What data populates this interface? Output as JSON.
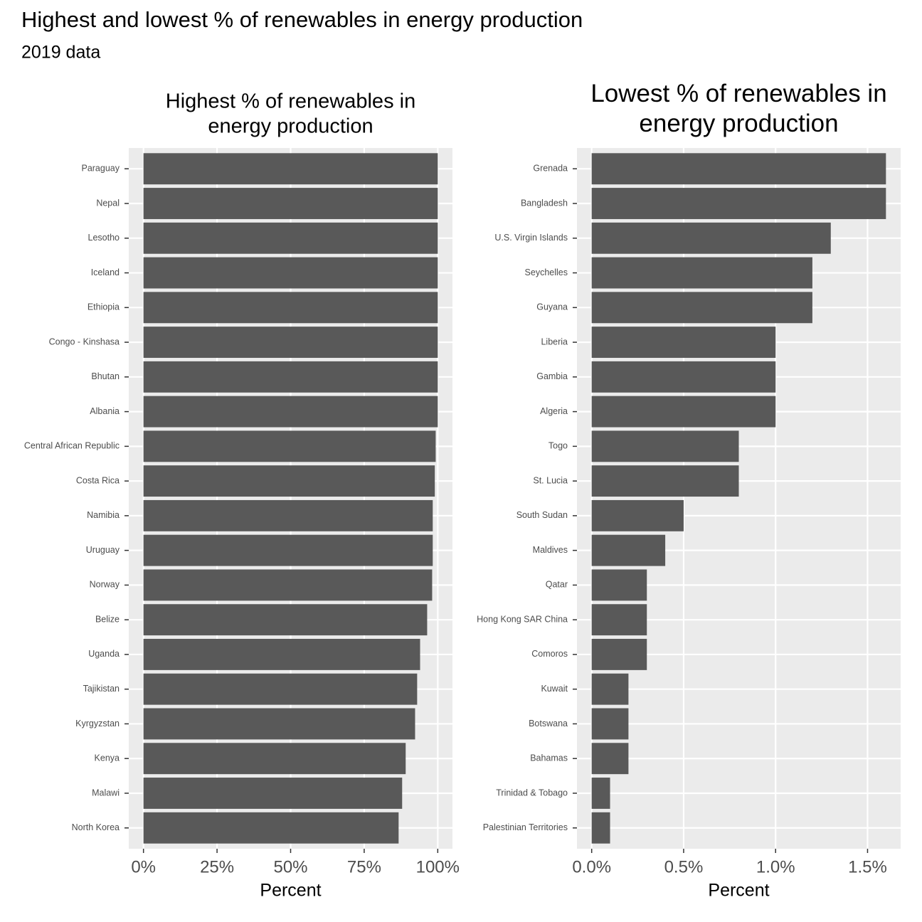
{
  "title": "Highest and lowest % of renewables in energy production",
  "subtitle": "2019 data",
  "chart_data": [
    {
      "type": "bar",
      "orientation": "horizontal",
      "title": "Highest % of renewables in\nenergy production",
      "x_label": "Percent",
      "categories": [
        "Paraguay",
        "Nepal",
        "Lesotho",
        "Iceland",
        "Ethiopia",
        "Congo - Kinshasa",
        "Bhutan",
        "Albania",
        "Central African Republic",
        "Costa Rica",
        "Namibia",
        "Uruguay",
        "Norway",
        "Belize",
        "Uganda",
        "Tajikistan",
        "Kyrgyzstan",
        "Kenya",
        "Malawi",
        "North Korea"
      ],
      "values": [
        100,
        100,
        100,
        100,
        100,
        100,
        100,
        100,
        99.3,
        99.0,
        98.3,
        98.3,
        98.1,
        96.4,
        94.0,
        93.0,
        92.3,
        89.1,
        87.9,
        86.7
      ],
      "color": "#595959",
      "xlim": [
        -5,
        105
      ],
      "xticks": [
        {
          "value": 0,
          "label": "0%"
        },
        {
          "value": 25,
          "label": "25%"
        },
        {
          "value": 50,
          "label": "50%"
        },
        {
          "value": 75,
          "label": "75%"
        },
        {
          "value": 100,
          "label": "100%"
        }
      ],
      "grid": true
    },
    {
      "type": "bar",
      "orientation": "horizontal",
      "title": "Lowest % of renewables in\nenergy production",
      "x_label": "Percent",
      "categories": [
        "Grenada",
        "Bangladesh",
        "U.S. Virgin Islands",
        "Seychelles",
        "Guyana",
        "Liberia",
        "Gambia",
        "Algeria",
        "Togo",
        "St. Lucia",
        "South Sudan",
        "Maldives",
        "Qatar",
        "Hong Kong SAR China",
        "Comoros",
        "Kuwait",
        "Botswana",
        "Bahamas",
        "Trinidad & Tobago",
        "Palestinian Territories"
      ],
      "values": [
        1.6,
        1.6,
        1.3,
        1.2,
        1.2,
        1.0,
        1.0,
        1.0,
        0.8,
        0.8,
        0.5,
        0.4,
        0.3,
        0.3,
        0.3,
        0.2,
        0.2,
        0.2,
        0.1,
        0.1
      ],
      "color": "#595959",
      "xlim": [
        -0.08,
        1.68
      ],
      "xticks": [
        {
          "value": 0,
          "label": "0.0%"
        },
        {
          "value": 0.5,
          "label": "0.5%"
        },
        {
          "value": 1.0,
          "label": "1.0%"
        },
        {
          "value": 1.5,
          "label": "1.5%"
        }
      ],
      "grid": true
    }
  ]
}
